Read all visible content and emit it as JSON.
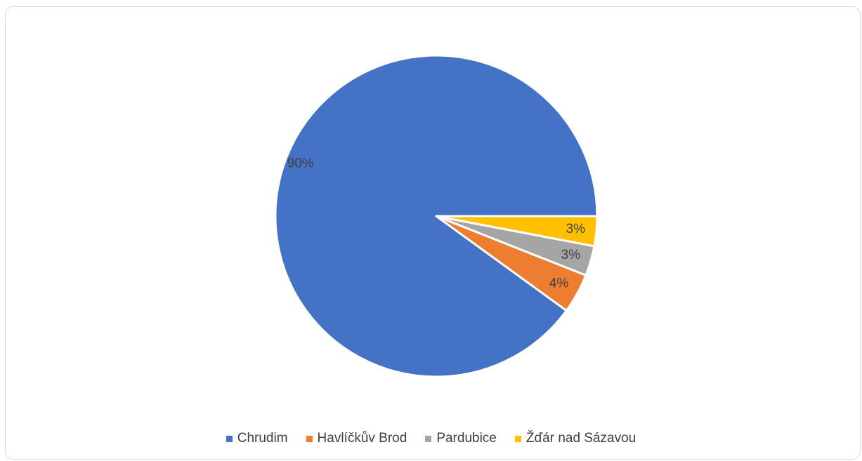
{
  "chart_data": {
    "type": "pie",
    "categories": [
      "Chrudim",
      "Havlíčkův Brod",
      "Pardubice",
      "Žďár nad Sázavou"
    ],
    "values": [
      90,
      4,
      3,
      3
    ],
    "data_labels": [
      "90%",
      "4%",
      "3%",
      "3%"
    ],
    "colors": [
      "#4472C4",
      "#ED7D31",
      "#A5A5A5",
      "#FFC000"
    ],
    "legend_position": "bottom",
    "start_angle_deg": 0,
    "direction": "counterclockwise-from-right"
  }
}
